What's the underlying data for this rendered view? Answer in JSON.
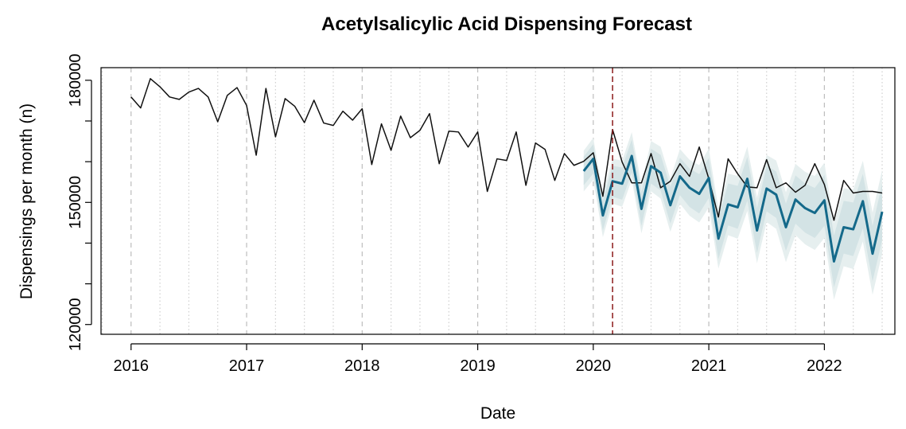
{
  "chart_data": {
    "type": "line",
    "title": "Acetylsalicylic Acid Dispensing Forecast",
    "xlabel": "Date",
    "ylabel": "Dispensings per month (n)",
    "xlim": [
      2015.74,
      2022.61
    ],
    "ylim": [
      117600,
      183100
    ],
    "xticks": [
      2016,
      2017,
      2018,
      2019,
      2020,
      2021,
      2022
    ],
    "xminor_step": 0.25,
    "yticks": [
      120000,
      150000,
      180000
    ],
    "yminor_ticks": [
      130000,
      140000,
      160000,
      170000
    ],
    "grid": true,
    "vline": {
      "x": 2020.167,
      "color": "#8b1a1a"
    },
    "series": [
      {
        "color": "#111111",
        "x": [
          2016,
          2016.083,
          2016.167,
          2016.25,
          2016.333,
          2016.417,
          2016.5,
          2016.583,
          2016.667,
          2016.75,
          2016.833,
          2016.917,
          2017,
          2017.083,
          2017.167,
          2017.25,
          2017.333,
          2017.417,
          2017.5,
          2017.583,
          2017.667,
          2017.75,
          2017.833,
          2017.917,
          2018,
          2018.083,
          2018.167,
          2018.25,
          2018.333,
          2018.417,
          2018.5,
          2018.583,
          2018.667,
          2018.75,
          2018.833,
          2018.917,
          2019,
          2019.083,
          2019.167,
          2019.25,
          2019.333,
          2019.417,
          2019.5,
          2019.583,
          2019.667,
          2019.75,
          2019.833,
          2019.917,
          2020,
          2020.083,
          2020.167,
          2020.25,
          2020.333,
          2020.417,
          2020.5,
          2020.583,
          2020.667,
          2020.75,
          2020.833,
          2020.917,
          2021,
          2021.083,
          2021.167,
          2021.25,
          2021.333,
          2021.417,
          2021.5,
          2021.583,
          2021.667,
          2021.75,
          2021.833,
          2021.917,
          2022,
          2022.083,
          2022.167,
          2022.25,
          2022.333,
          2022.417,
          2022.5
        ],
        "values": [
          175900,
          173200,
          180400,
          178400,
          175900,
          175300,
          177100,
          178000,
          175900,
          169800,
          176300,
          178200,
          173800,
          161600,
          178000,
          166100,
          175500,
          173600,
          169600,
          175100,
          169500,
          168900,
          172400,
          170200,
          173000,
          159300,
          169300,
          162800,
          171200,
          165900,
          167700,
          171800,
          159500,
          167500,
          167300,
          163600,
          167300,
          152700,
          160700,
          160300,
          167300,
          154200,
          164600,
          163000,
          155400,
          162000,
          159100,
          160100,
          162200,
          151500,
          167900,
          159900,
          154800,
          154800,
          162000,
          153600,
          155200,
          159500,
          156400,
          163600,
          155800,
          146400,
          160700,
          157000,
          153800,
          153600,
          160500,
          153600,
          154800,
          152500,
          154200,
          159500,
          154400,
          145600,
          155400,
          152300,
          152700,
          152700,
          152300
        ]
      },
      {
        "color": "#14698a",
        "band_colors": [
          "#e6efef",
          "#d3e3e5"
        ],
        "x": [
          2019.917,
          2020,
          2020.083,
          2020.167,
          2020.25,
          2020.333,
          2020.417,
          2020.5,
          2020.583,
          2020.667,
          2020.75,
          2020.833,
          2020.917,
          2021,
          2021.083,
          2021.167,
          2021.25,
          2021.333,
          2021.417,
          2021.5,
          2021.583,
          2021.667,
          2021.75,
          2021.833,
          2021.917,
          2022,
          2022.083,
          2022.167,
          2022.25,
          2022.333,
          2022.417,
          2022.5
        ],
        "values": [
          157700,
          160700,
          146800,
          155200,
          154600,
          161400,
          148400,
          158900,
          157300,
          149300,
          156400,
          153600,
          152100,
          156000,
          141100,
          149500,
          148800,
          155800,
          143100,
          153400,
          151900,
          143900,
          150700,
          148600,
          147400,
          150500,
          135500,
          143900,
          143400,
          150300,
          137400,
          147700
        ],
        "lower95": [
          152700,
          155530,
          141460,
          149690,
          148920,
          155550,
          142380,
          152710,
          150940,
          142770,
          149700,
          146730,
          145060,
          148790,
          133720,
          141950,
          141080,
          147910,
          135040,
          145170,
          143500,
          135330,
          141960,
          139690,
          138320,
          141250,
          126080,
          134310,
          133640,
          140370,
          127300,
          137430
        ],
        "upper95": [
          162700,
          165870,
          152140,
          160710,
          160280,
          167250,
          154420,
          165090,
          163660,
          155830,
          163100,
          160470,
          159140,
          163210,
          148480,
          157050,
          156520,
          163690,
          151160,
          161630,
          160300,
          152470,
          159440,
          157510,
          156480,
          159750,
          144920,
          153490,
          153160,
          160230,
          147500,
          157970
        ],
        "lower80": [
          154200,
          157090,
          143080,
          151370,
          150660,
          157350,
          144240,
          154630,
          152920,
          144810,
          151800,
          148890,
          147280,
          151070,
          136060,
          144350,
          143540,
          150430,
          137620,
          147810,
          146200,
          138090,
          144780,
          142570,
          141260,
          144250,
          129140,
          137430,
          136820,
          143610,
          130600,
          140790
        ],
        "upper80": [
          161200,
          164310,
          150520,
          159030,
          158540,
          165450,
          152560,
          163170,
          161680,
          153790,
          161000,
          158310,
          156920,
          160930,
          146140,
          154650,
          154060,
          161170,
          148580,
          158990,
          157600,
          149710,
          156620,
          154630,
          153540,
          156750,
          141860,
          150370,
          149980,
          156990,
          144200,
          154610
        ]
      }
    ]
  }
}
